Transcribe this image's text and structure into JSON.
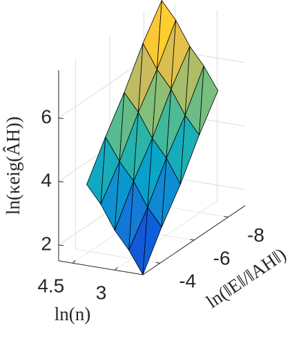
{
  "chart_data": {
    "type": "surface",
    "xlabel": "ln(n)",
    "ylabel": "ln(‖E‖/‖AH‖)",
    "zlabel": "ln(κeig(ÂH))",
    "x": [
      2.0,
      2.5,
      3.0,
      3.5,
      4.0
    ],
    "y": [
      -3.0,
      -4.1,
      -5.2,
      -6.3,
      -7.4
    ],
    "z": [
      [
        1.5,
        2.2,
        2.75,
        3.5,
        4.05
      ],
      [
        2.6,
        3.15,
        3.9,
        4.45,
        5.15
      ],
      [
        3.55,
        4.3,
        4.85,
        5.6,
        6.15
      ],
      [
        4.7,
        5.25,
        6.0,
        6.55,
        7.3
      ],
      [
        5.7,
        6.4,
        6.95,
        7.7,
        8.25
      ]
    ],
    "xlim": [
      2,
      5
    ],
    "ylim": [
      -9,
      -3
    ],
    "zlim": [
      1.5,
      7.5
    ],
    "xticks": [
      3,
      4.5
    ],
    "yticks": [
      -8,
      -6,
      -4
    ],
    "zticks": [
      2,
      4,
      6
    ],
    "grid": true,
    "colormap": [
      "#352a87",
      "#0f5cdd",
      "#1481d6",
      "#06a4ca",
      "#2eb7a4",
      "#87bf77",
      "#d1bb59",
      "#fec832",
      "#f9fb0e"
    ]
  }
}
